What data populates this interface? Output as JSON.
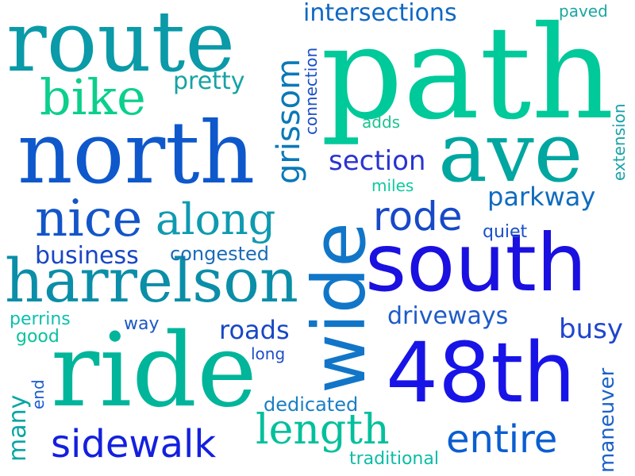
{
  "words": [
    {
      "text": "path",
      "color": "#00c99a"
    },
    {
      "text": "south",
      "color": "#1a10e0"
    },
    {
      "text": "48th",
      "color": "#1814e8"
    },
    {
      "text": "ride",
      "color": "#00b59a"
    },
    {
      "text": "route",
      "color": "#0a9aa8"
    },
    {
      "text": "north",
      "color": "#0e58cc"
    },
    {
      "text": "ave",
      "color": "#00a6a0"
    },
    {
      "text": "wide",
      "color": "#1176c8"
    },
    {
      "text": "harrelson",
      "color": "#0b8ea8"
    },
    {
      "text": "bike",
      "color": "#0ccf8c"
    },
    {
      "text": "nice",
      "color": "#1355c9"
    },
    {
      "text": "along",
      "color": "#0f9ab0"
    },
    {
      "text": "length",
      "color": "#02c09c"
    },
    {
      "text": "sidewalk",
      "color": "#1420de"
    },
    {
      "text": "entire",
      "color": "#0a5ed0"
    },
    {
      "text": "rode",
      "color": "#1749c8"
    },
    {
      "text": "grissom",
      "color": "#0a79b8"
    },
    {
      "text": "intersections",
      "color": "#0f68c4"
    },
    {
      "text": "section",
      "color": "#2a34d0"
    },
    {
      "text": "parkway",
      "color": "#0f6cbf"
    },
    {
      "text": "business",
      "color": "#1846c4"
    },
    {
      "text": "pretty",
      "color": "#16a2a4"
    },
    {
      "text": "roads",
      "color": "#1848c6"
    },
    {
      "text": "busy",
      "color": "#1f45cf"
    },
    {
      "text": "driveways",
      "color": "#1d5bc9"
    },
    {
      "text": "congested",
      "color": "#1a6cb8"
    },
    {
      "text": "dedicated",
      "color": "#1b7fc2"
    },
    {
      "text": "traditional",
      "color": "#0cbca6"
    },
    {
      "text": "maneuver",
      "color": "#1d62c9"
    },
    {
      "text": "many",
      "color": "#06a6a4"
    },
    {
      "text": "end",
      "color": "#1c5bd0"
    },
    {
      "text": "perrins",
      "color": "#0dbfb0"
    },
    {
      "text": "good",
      "color": "#07c29e"
    },
    {
      "text": "way",
      "color": "#1a58c6"
    },
    {
      "text": "long",
      "color": "#1e4dc8"
    },
    {
      "text": "quiet",
      "color": "#1a50c8"
    },
    {
      "text": "miles",
      "color": "#10c89e"
    },
    {
      "text": "adds",
      "color": "#1ac48c"
    },
    {
      "text": "paved",
      "color": "#1aa8a0"
    },
    {
      "text": "connection",
      "color": "#1a4fc8"
    },
    {
      "text": "extension",
      "color": "#1aa2a8"
    }
  ]
}
